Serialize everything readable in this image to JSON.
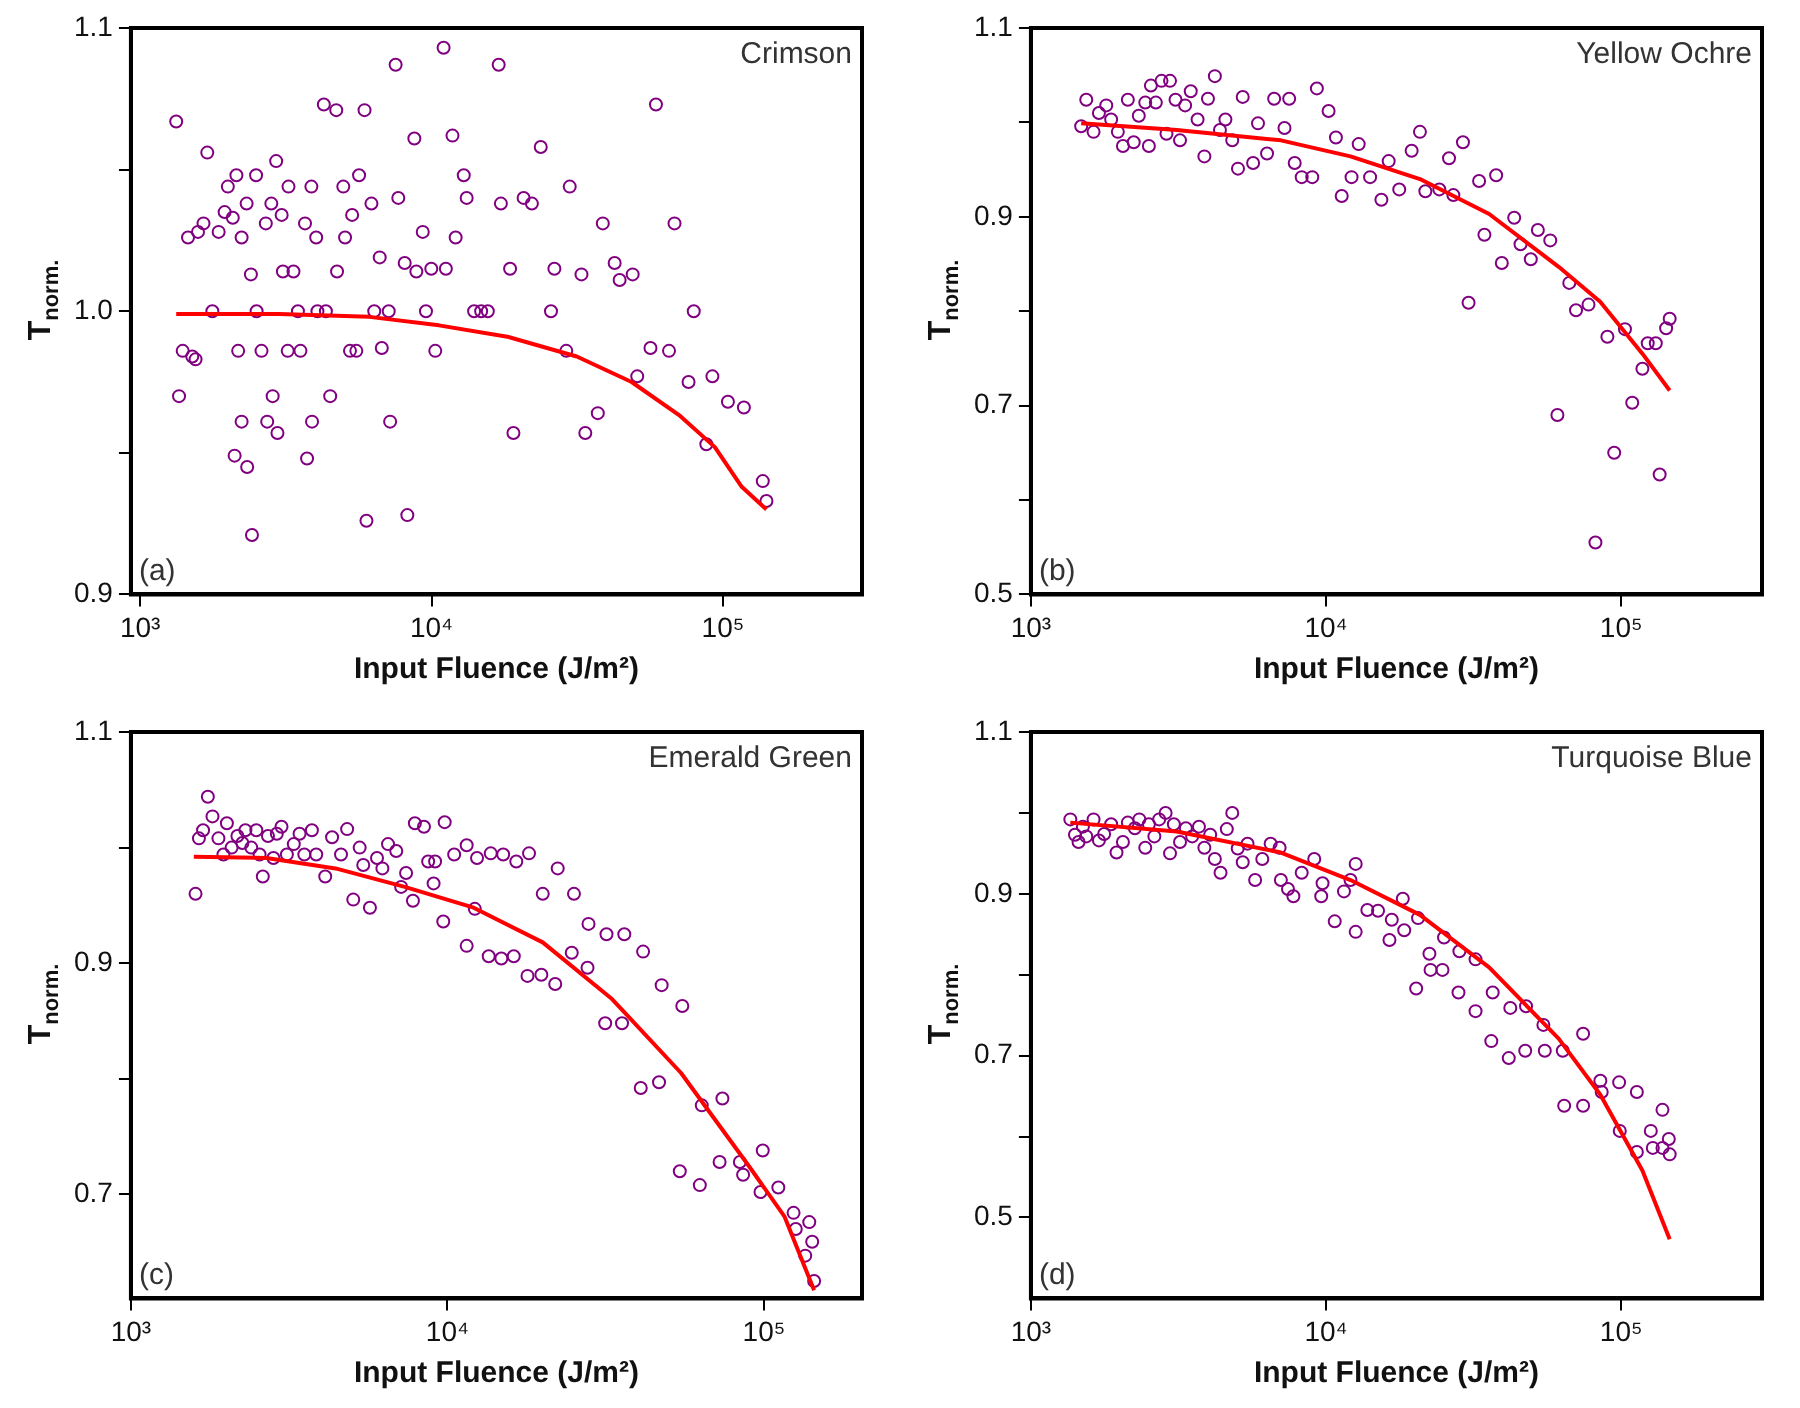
{
  "chart_data": [
    {
      "type": "scatter",
      "xlabel": "Input Fluence (J/m²)",
      "ylabel": "T$_{norm.}$",
      "annotations": [
        "Crimson",
        "(a)"
      ],
      "log": "x",
      "grid": false,
      "legend": false,
      "xlim": [
        930,
        300000
      ],
      "ylim": [
        0.9,
        1.1
      ],
      "xticks": [
        {
          "value": 1000,
          "label": "10³"
        },
        {
          "value": 10000,
          "label": "10⁴"
        },
        {
          "value": 100000,
          "label": "10⁵"
        }
      ],
      "yticks": [
        0.9,
        {
          "value": 0.95,
          "label": null
        },
        {
          "value": 1.0,
          "label": "1.0"
        },
        {
          "value": 1.05,
          "label": null
        },
        1.1
      ],
      "series": [
        {
          "marker": "circle",
          "color": "#800080",
          "x": [
            1330,
            1360,
            1400,
            1460,
            1510,
            1550,
            1580,
            1650,
            1700,
            1770,
            1860,
            1950,
            2000,
            2080,
            2110,
            2140,
            2170,
            2230,
            2230,
            2320,
            2330,
            2400,
            2420,
            2500,
            2510,
            2610,
            2700,
            2730,
            2820,
            2850,
            2930,
            2960,
            3060,
            3090,
            3210,
            3230,
            3360,
            3480,
            3550,
            3680,
            3740,
            3870,
            3890,
            4020,
            4060,
            4270,
            4340,
            4490,
            4710,
            4740,
            4980,
            5050,
            5250,
            5340,
            5520,
            5640,
            5890,
            5980,
            6220,
            6360,
            6640,
            6750,
            7130,
            7210,
            7530,
            7690,
            8090,
            8260,
            8730,
            8870,
            9330,
            9570,
            9980,
            10300,
            11000,
            11200,
            11800,
            12100,
            12900,
            13200,
            14000,
            14800,
            15600,
            17000,
            17300,
            18600,
            19100,
            20700,
            22100,
            23700,
            25700,
            26400,
            29000,
            29800,
            32700,
            33700,
            37200,
            38700,
            42500,
            44200,
            49000,
            50800,
            56400,
            58900,
            65300,
            68200,
            76200,
            79400,
            87700,
            92000,
            104000,
            118000,
            137000,
            141000
          ],
          "values": [
            1.067,
            0.97,
            0.986,
            1.026,
            0.984,
            0.983,
            1.028,
            1.031,
            1.056,
            1.0,
            1.028,
            1.035,
            1.044,
            1.033,
            0.949,
            1.048,
            0.986,
            1.026,
            0.961,
            1.038,
            0.945,
            1.013,
            0.921,
            1.048,
            1.0,
            0.986,
            1.031,
            0.961,
            1.038,
            0.97,
            1.053,
            0.957,
            1.034,
            1.014,
            0.986,
            1.044,
            1.014,
            1.0,
            0.986,
            1.031,
            0.948,
            1.044,
            0.961,
            1.026,
            1.0,
            1.073,
            1.0,
            0.97,
            1.071,
            1.014,
            1.044,
            1.026,
            0.986,
            1.034,
            0.986,
            1.048,
            1.071,
            0.926,
            1.038,
            1.0,
            1.019,
            0.987,
            1.0,
            0.961,
            1.087,
            1.04,
            1.017,
            0.928,
            1.061,
            1.014,
            1.028,
            1.0,
            1.015,
            0.986,
            1.093,
            1.015,
            1.062,
            1.026,
            1.048,
            1.04,
            1.0,
            1.0,
            1.0,
            1.087,
            1.038,
            1.015,
            0.957,
            1.04,
            1.038,
            1.058,
            1.0,
            1.015,
            0.986,
            1.044,
            1.013,
            0.957,
            0.964,
            1.031,
            1.017,
            1.011,
            1.013,
            0.977,
            0.987,
            1.073,
            0.986,
            1.031,
            0.975,
            1.0,
            0.953,
            0.977,
            0.968,
            0.966,
            0.94,
            0.933
          ]
        },
        {
          "type": "line",
          "marker": "none",
          "color": "#ff0000",
          "x": [
            1330,
            3000,
            6120,
            10600,
            18200,
            31500,
            48600,
            71300,
            93800,
            116000,
            141000
          ],
          "values": [
            0.999,
            0.999,
            0.998,
            0.995,
            0.991,
            0.984,
            0.975,
            0.963,
            0.952,
            0.938,
            0.93
          ]
        }
      ]
    },
    {
      "type": "scatter",
      "xlabel": "Input Fluence (J/m²)",
      "ylabel": "T$_{norm.}$",
      "annotations": [
        "Yellow Ochre",
        "(b)"
      ],
      "log": "x",
      "grid": false,
      "legend": false,
      "xlim": [
        1000,
        300000
      ],
      "ylim": [
        0.5,
        1.1
      ],
      "xticks": [
        {
          "value": 1000,
          "label": "10³"
        },
        {
          "value": 10000,
          "label": "10⁴"
        },
        {
          "value": 100000,
          "label": "10⁵"
        }
      ],
      "yticks": [
        0.5,
        {
          "value": 0.6,
          "label": null
        },
        0.7,
        {
          "value": 0.8,
          "label": null
        },
        0.9,
        {
          "value": 1.0,
          "label": null
        },
        1.1
      ],
      "series": [
        {
          "marker": "circle",
          "color": "#800080",
          "x": [
            1480,
            1540,
            1630,
            1700,
            1800,
            1870,
            1970,
            2050,
            2130,
            2230,
            2320,
            2440,
            2510,
            2550,
            2650,
            2770,
            2880,
            2960,
            3090,
            3200,
            3330,
            3480,
            3670,
            3870,
            3980,
            4200,
            4370,
            4560,
            4810,
            5030,
            5220,
            5660,
            5880,
            6310,
            6670,
            7230,
            7500,
            7830,
            8270,
            8980,
            9310,
            10200,
            10800,
            11300,
            12200,
            12900,
            14100,
            15400,
            16300,
            17700,
            19500,
            20800,
            21700,
            24200,
            26100,
            27000,
            29100,
            30400,
            33000,
            34400,
            37700,
            39400,
            43400,
            45600,
            49400,
            52200,
            57500,
            60800,
            66700,
            70300,
            77500,
            81800,
            89800,
            94700,
            103000,
            109000,
            118000,
            123000,
            131000,
            135000,
            142000,
            146000
          ],
          "values": [
            0.996,
            1.024,
            0.99,
            1.01,
            1.018,
            1.003,
            0.99,
            0.975,
            1.024,
            0.979,
            1.007,
            1.021,
            0.975,
            1.039,
            1.021,
            1.044,
            0.988,
            1.044,
            1.024,
            0.981,
            1.018,
            1.033,
            1.003,
            0.964,
            1.025,
            1.049,
            0.992,
            1.003,
            0.981,
            0.951,
            1.027,
            0.957,
            0.999,
            0.967,
            1.025,
            0.994,
            1.025,
            0.957,
            0.942,
            0.942,
            1.036,
            1.012,
            0.984,
            0.922,
            0.942,
            0.977,
            0.942,
            0.918,
            0.959,
            0.929,
            0.97,
            0.99,
            0.927,
            0.929,
            0.962,
            0.923,
            0.979,
            0.809,
            0.938,
            0.881,
            0.944,
            0.851,
            0.899,
            0.871,
            0.855,
            0.886,
            0.875,
            0.69,
            0.83,
            0.801,
            0.807,
            0.555,
            0.773,
            0.65,
            0.781,
            0.703,
            0.739,
            0.766,
            0.766,
            0.627,
            0.782,
            0.792
          ]
        },
        {
          "type": "line",
          "marker": "none",
          "color": "#ff0000",
          "x": [
            1480,
            3120,
            7030,
            12100,
            20800,
            35700,
            61400,
            84900,
            118000,
            146000
          ],
          "values": [
            0.999,
            0.992,
            0.981,
            0.964,
            0.94,
            0.903,
            0.847,
            0.81,
            0.755,
            0.716
          ]
        }
      ]
    },
    {
      "type": "scatter",
      "xlabel": "Input Fluence (J/m²)",
      "ylabel": "T$_{norm.}$",
      "annotations": [
        "Emerald Green",
        "(c)"
      ],
      "log": "x",
      "grid": false,
      "legend": false,
      "xlim": [
        1000,
        204000
      ],
      "ylim": [
        0.61,
        1.1
      ],
      "xticks": [
        {
          "value": 1000,
          "label": "10³"
        },
        {
          "value": 10000,
          "label": "10⁴"
        },
        {
          "value": 100000,
          "label": "10⁵"
        }
      ],
      "yticks": [
        0.7,
        {
          "value": 0.8,
          "label": null
        },
        0.9,
        {
          "value": 1.0,
          "label": null
        },
        1.1
      ],
      "series": [
        {
          "marker": "circle",
          "color": "#800080",
          "x": [
            1600,
            1640,
            1690,
            1750,
            1810,
            1890,
            1960,
            2010,
            2080,
            2170,
            2250,
            2300,
            2400,
            2490,
            2550,
            2610,
            2710,
            2820,
            2890,
            2990,
            3110,
            3270,
            3410,
            3530,
            3730,
            3850,
            4110,
            4320,
            4610,
            4820,
            5040,
            5280,
            5420,
            5690,
            5990,
            6230,
            6490,
            6890,
            7140,
            7400,
            7780,
            7890,
            8430,
            8690,
            9040,
            9140,
            9700,
            9800,
            10500,
            11500,
            11500,
            12200,
            12400,
            13500,
            13700,
            14800,
            15000,
            16200,
            16500,
            17900,
            18100,
            19800,
            20000,
            21900,
            22300,
            24700,
            25100,
            27900,
            27700,
            31500,
            31800,
            35600,
            36200,
            40800,
            41500,
            46600,
            47500,
            54200,
            55200,
            62700,
            63600,
            72400,
            73900,
            83900,
            85900,
            97500,
            99100,
            111000,
            124000,
            126000,
            135000,
            139000,
            142000,
            144000
          ],
          "values": [
            0.96,
            1.008,
            1.015,
            1.044,
            1.027,
            1.008,
            0.994,
            1.021,
            1.0,
            1.01,
            1.004,
            1.015,
            1.0,
            1.015,
            0.994,
            0.975,
            1.01,
            0.991,
            1.012,
            1.018,
            0.994,
            1.003,
            1.012,
            0.994,
            1.015,
            0.994,
            0.975,
            1.009,
            0.994,
            1.016,
            0.955,
            1.0,
            0.985,
            0.948,
            0.991,
            0.982,
            1.003,
            0.997,
            0.966,
            0.978,
            0.954,
            1.021,
            1.018,
            0.988,
            0.969,
            0.988,
            0.936,
            1.022,
            0.994,
            1.002,
            0.915,
            0.947,
            0.991,
            0.906,
            0.995,
            0.904,
            0.994,
            0.906,
            0.988,
            0.889,
            0.995,
            0.89,
            0.96,
            0.882,
            0.982,
            0.909,
            0.96,
            0.934,
            0.896,
            0.848,
            0.925,
            0.848,
            0.925,
            0.792,
            0.91,
            0.797,
            0.881,
            0.72,
            0.863,
            0.708,
            0.777,
            0.728,
            0.783,
            0.728,
            0.717,
            0.702,
            0.738,
            0.706,
            0.684,
            0.67,
            0.647,
            0.676,
            0.659,
            0.625
          ]
        },
        {
          "type": "line",
          "marker": "none",
          "color": "#ff0000",
          "x": [
            1580,
            2680,
            4430,
            7330,
            12100,
            20000,
            33100,
            54700,
            90400,
            116000,
            144000
          ],
          "values": [
            0.992,
            0.991,
            0.982,
            0.966,
            0.948,
            0.918,
            0.869,
            0.805,
            0.723,
            0.681,
            0.617
          ]
        }
      ]
    },
    {
      "type": "scatter",
      "xlabel": "Input Fluence (J/m²)",
      "ylabel": "T$_{norm.}$",
      "annotations": [
        "Turquoise Blue",
        "(d)"
      ],
      "log": "x",
      "grid": false,
      "legend": false,
      "xlim": [
        1000,
        300000
      ],
      "ylim": [
        0.4,
        1.1
      ],
      "xticks": [
        {
          "value": 1000,
          "label": "10³"
        },
        {
          "value": 10000,
          "label": "10⁴"
        },
        {
          "value": 100000,
          "label": "10⁵"
        }
      ],
      "yticks": [
        0.5,
        {
          "value": 0.6,
          "label": null
        },
        0.7,
        {
          "value": 0.8,
          "label": null
        },
        0.9,
        {
          "value": 1.0,
          "label": null
        },
        1.1
      ],
      "series": [
        {
          "marker": "circle",
          "color": "#800080",
          "x": [
            1360,
            1410,
            1450,
            1500,
            1540,
            1630,
            1700,
            1770,
            1870,
            1950,
            2050,
            2130,
            2250,
            2330,
            2440,
            2510,
            2620,
            2720,
            2860,
            2960,
            3050,
            3200,
            3350,
            3520,
            3710,
            3870,
            4050,
            4200,
            4390,
            4610,
            4810,
            5020,
            5220,
            5420,
            5750,
            6080,
            6490,
            6960,
            7030,
            7430,
            7750,
            8270,
            9120,
            9630,
            9730,
            10700,
            11500,
            12100,
            12600,
            12600,
            13800,
            15000,
            16400,
            16700,
            18200,
            18400,
            20200,
            20500,
            22400,
            22600,
            24800,
            25100,
            28100,
            28300,
            32100,
            32100,
            36300,
            36700,
            41600,
            42100,
            47300,
            47600,
            54500,
            55100,
            63400,
            64100,
            74300,
            74300,
            85000,
            85900,
            98400,
            98900,
            113000,
            113000,
            126000,
            128000,
            138000,
            138000,
            145000,
            146000
          ],
          "values": [
            0.992,
            0.973,
            0.964,
            0.983,
            0.971,
            0.992,
            0.966,
            0.974,
            0.986,
            0.951,
            0.964,
            0.988,
            0.981,
            0.992,
            0.957,
            0.986,
            0.971,
            0.992,
            1.0,
            0.95,
            0.986,
            0.964,
            0.981,
            0.971,
            0.983,
            0.957,
            0.973,
            0.943,
            0.926,
            0.98,
            1.0,
            0.956,
            0.939,
            0.962,
            0.917,
            0.943,
            0.962,
            0.957,
            0.917,
            0.906,
            0.897,
            0.926,
            0.943,
            0.897,
            0.913,
            0.866,
            0.903,
            0.917,
            0.937,
            0.853,
            0.88,
            0.879,
            0.843,
            0.868,
            0.894,
            0.855,
            0.783,
            0.87,
            0.826,
            0.806,
            0.806,
            0.846,
            0.778,
            0.829,
            0.819,
            0.755,
            0.718,
            0.778,
            0.697,
            0.759,
            0.706,
            0.761,
            0.738,
            0.706,
            0.706,
            0.638,
            0.727,
            0.638,
            0.669,
            0.655,
            0.667,
            0.607,
            0.655,
            0.581,
            0.607,
            0.586,
            0.633,
            0.586,
            0.597,
            0.578
          ]
        },
        {
          "type": "line",
          "marker": "none",
          "color": "#ff0000",
          "x": [
            1360,
            3120,
            7030,
            12100,
            20800,
            35700,
            61400,
            84900,
            118000,
            146000
          ],
          "values": [
            0.988,
            0.977,
            0.951,
            0.917,
            0.874,
            0.809,
            0.721,
            0.652,
            0.558,
            0.473
          ]
        }
      ]
    }
  ]
}
